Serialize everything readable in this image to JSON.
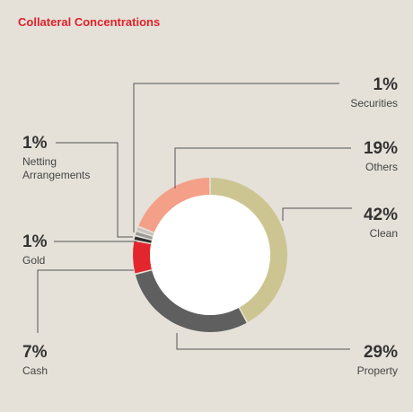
{
  "title": "Collateral Concentrations",
  "chart_data": {
    "type": "pie",
    "title": "Collateral Concentrations",
    "style": "donut",
    "slices": [
      {
        "label": "Clean",
        "value": 42,
        "display": "42%",
        "color": "#cdc591"
      },
      {
        "label": "Property",
        "value": 29,
        "display": "29%",
        "color": "#5f5f5f"
      },
      {
        "label": "Cash",
        "value": 7,
        "display": "7%",
        "color": "#e3262e"
      },
      {
        "label": "Gold",
        "value": 1,
        "display": "1%",
        "color": "#2d2d2d"
      },
      {
        "label": "Netting Arrangements",
        "label_lines": [
          "Netting",
          "Arrangements"
        ],
        "value": 1,
        "display": "1%",
        "color": "#9a9a9a"
      },
      {
        "label": "Securities",
        "value": 1,
        "display": "1%",
        "color": "#c8c3bb"
      },
      {
        "label": "Others",
        "value": 19,
        "display": "19%",
        "color": "#f4a088"
      }
    ]
  }
}
